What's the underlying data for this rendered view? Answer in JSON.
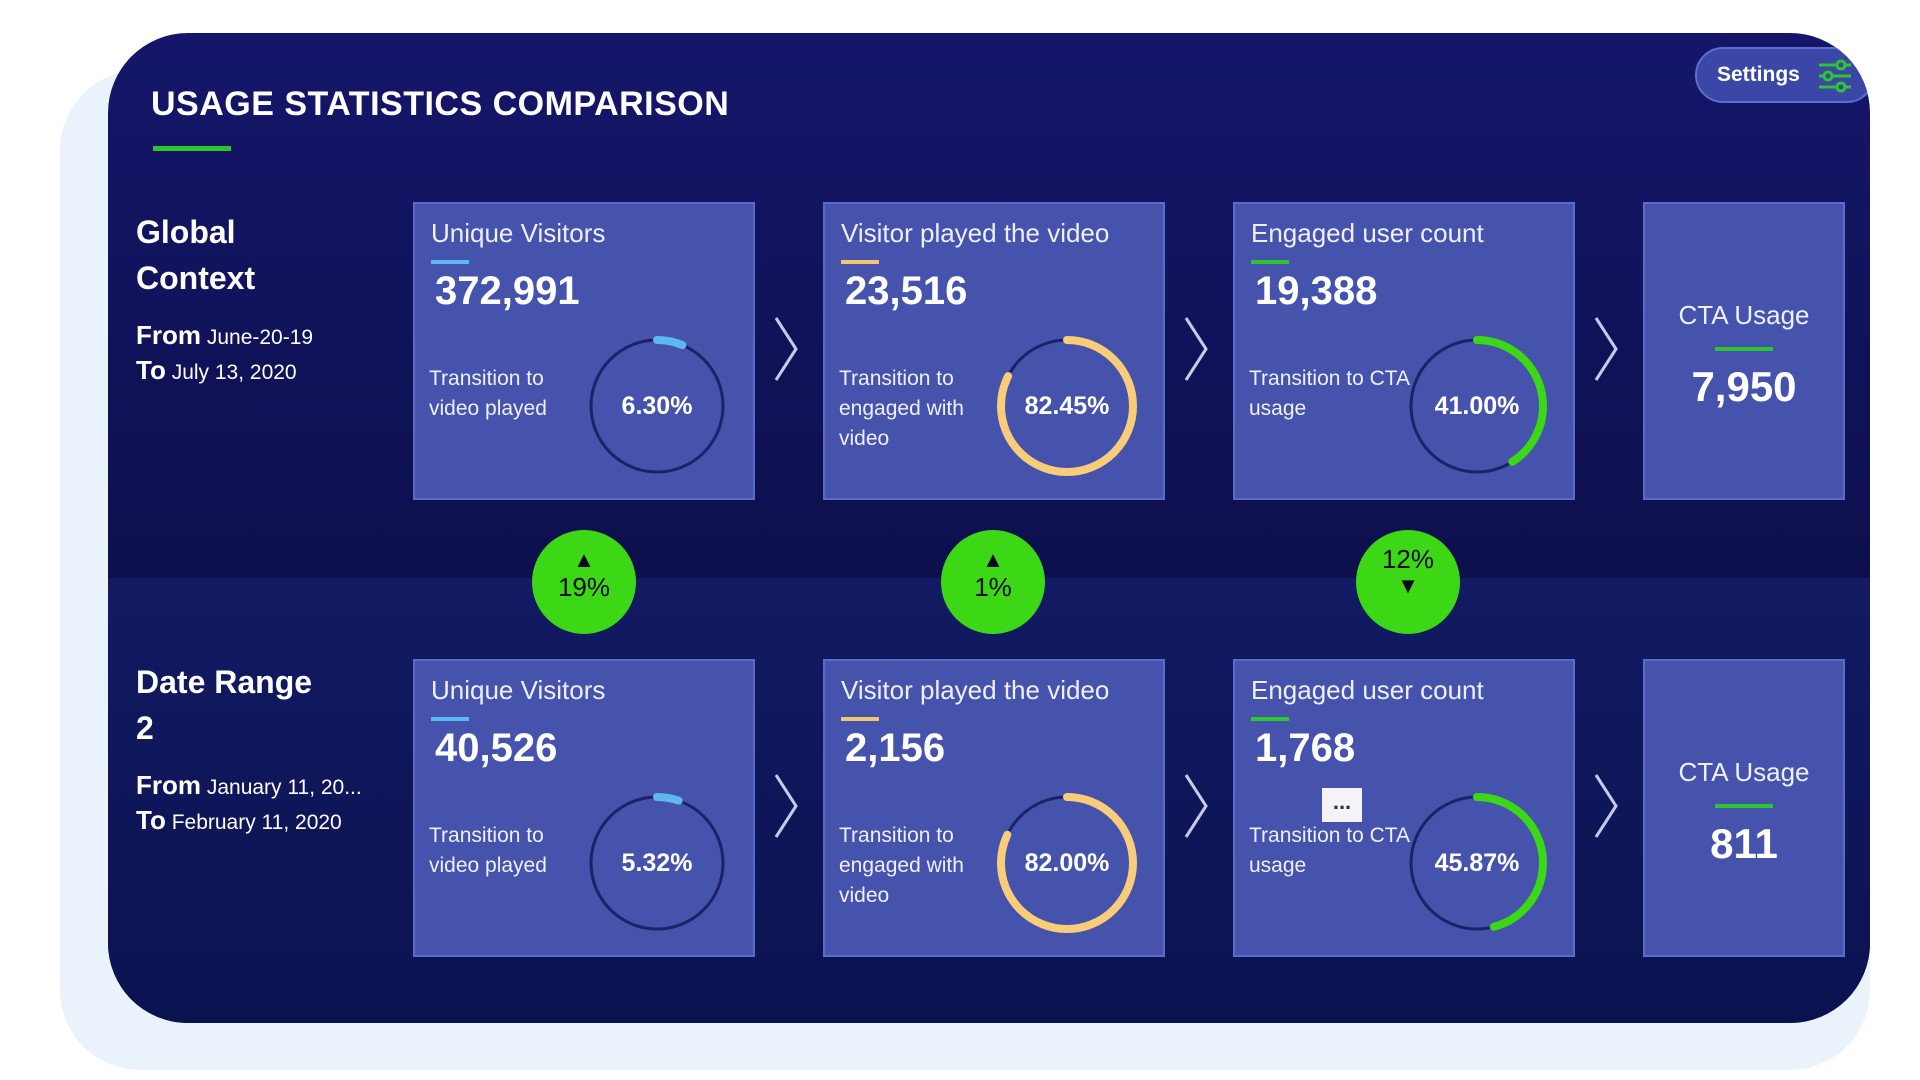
{
  "header": {
    "title": "USAGE STATISTICS COMPARISON",
    "settings_label": "Settings"
  },
  "rows": [
    {
      "name": "Global Context",
      "from_word": "From",
      "from": "June-20-19",
      "to_word": "To",
      "to": "July 13, 2020",
      "cards": [
        {
          "title": "Unique Visitors",
          "value": "372,991",
          "sub": "Transition to video played",
          "gauge_label": "6.30%",
          "gauge_pct": 6.3
        },
        {
          "title": "Visitor played the video",
          "value": "23,516",
          "sub": "Transition to engaged with video",
          "gauge_label": "82.45%",
          "gauge_pct": 82.45
        },
        {
          "title": "Engaged user count",
          "value": "19,388",
          "sub": "Transition to CTA usage",
          "gauge_label": "41.00%",
          "gauge_pct": 41.0
        }
      ],
      "cta": {
        "title": "CTA Usage",
        "value": "7,950"
      }
    },
    {
      "name": "Date Range 2",
      "from_word": "From",
      "from": "January 11, 20...",
      "to_word": "To",
      "to": "February 11, 2020",
      "cards": [
        {
          "title": "Unique Visitors",
          "value": "40,526",
          "sub": "Transition to video played",
          "gauge_label": "5.32%",
          "gauge_pct": 5.32
        },
        {
          "title": "Visitor played the video",
          "value": "2,156",
          "sub": "Transition to engaged with video",
          "gauge_label": "82.00%",
          "gauge_pct": 82.0
        },
        {
          "title": "Engaged user count",
          "value": "1,768",
          "sub": "Transition to CTA usage",
          "gauge_label": "45.87%",
          "gauge_pct": 45.87
        }
      ],
      "cta": {
        "title": "CTA Usage",
        "value": "811"
      }
    }
  ],
  "comparisons": [
    {
      "direction": "up",
      "value": "19%"
    },
    {
      "direction": "up",
      "value": "1%"
    },
    {
      "direction": "down",
      "value": "12%"
    }
  ],
  "ellipsis": "...",
  "colors": {
    "card_accents": [
      "#5db8f2",
      "#f2c66d",
      "#2ec62e"
    ],
    "gauge_fills": [
      "#5db8f2",
      "#f8cc78",
      "#3dd815"
    ],
    "badge": "#3dd815",
    "panel": "#13166a",
    "card": "#4553ad"
  },
  "icons": {
    "settings": "sliders-icon",
    "arrow": "chevron-right-icon",
    "up": "triangle-up-icon",
    "down": "triangle-down-icon"
  }
}
